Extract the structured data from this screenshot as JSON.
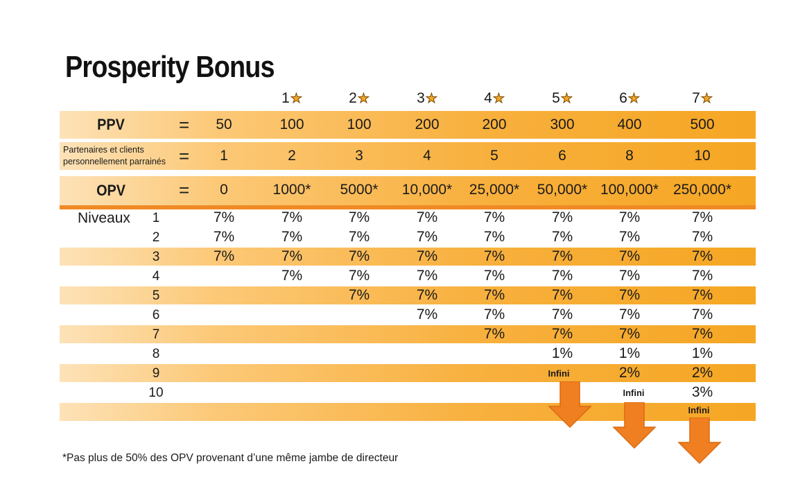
{
  "title": "Prosperity Bonus",
  "stars": [
    "1",
    "2",
    "3",
    "4",
    "5",
    "6",
    "7"
  ],
  "rows": {
    "ppv": {
      "label": "PPV",
      "eq": "=",
      "values": [
        "50",
        "100",
        "100",
        "200",
        "200",
        "300",
        "400",
        "500"
      ]
    },
    "partners": {
      "label_line1": "Partenaires et clients",
      "label_line2": "personnellement parrainés",
      "eq": "=",
      "values": [
        "1",
        "2",
        "3",
        "4",
        "5",
        "6",
        "8",
        "10"
      ]
    },
    "opv": {
      "label": "OPV",
      "eq": "=",
      "values": [
        "0",
        "1000*",
        "5000*",
        "10,000*",
        "25,000*",
        "50,000*",
        "100,000*",
        "250,000*"
      ]
    }
  },
  "levels_label": "Niveaux",
  "levels": [
    {
      "n": "1",
      "values": [
        "7%",
        "7%",
        "7%",
        "7%",
        "7%",
        "7%",
        "7%",
        "7%"
      ]
    },
    {
      "n": "2",
      "values": [
        "7%",
        "7%",
        "7%",
        "7%",
        "7%",
        "7%",
        "7%",
        "7%"
      ]
    },
    {
      "n": "3",
      "values": [
        "7%",
        "7%",
        "7%",
        "7%",
        "7%",
        "7%",
        "7%",
        "7%"
      ]
    },
    {
      "n": "4",
      "values": [
        "",
        "7%",
        "7%",
        "7%",
        "7%",
        "7%",
        "7%",
        "7%"
      ]
    },
    {
      "n": "5",
      "values": [
        "",
        "",
        "7%",
        "7%",
        "7%",
        "7%",
        "7%",
        "7%"
      ]
    },
    {
      "n": "6",
      "values": [
        "",
        "",
        "",
        "7%",
        "7%",
        "7%",
        "7%",
        "7%"
      ]
    },
    {
      "n": "7",
      "values": [
        "",
        "",
        "",
        "",
        "7%",
        "7%",
        "7%",
        "7%"
      ]
    },
    {
      "n": "8",
      "values": [
        "",
        "",
        "",
        "",
        "",
        "1%",
        "1%",
        "1%"
      ]
    },
    {
      "n": "9",
      "values": [
        "",
        "",
        "",
        "",
        "",
        "",
        "2%",
        "2%"
      ]
    },
    {
      "n": "10",
      "values": [
        "",
        "",
        "",
        "",
        "",
        "",
        "",
        "3%"
      ]
    }
  ],
  "infini_label": "Infini",
  "footnote": "*Pas plus de 50% des OPV provenant d’une même jambe de directeur",
  "colors": {
    "arrow": "#f07f22",
    "band_end": "#f5a623",
    "band_start": "#fde2b8",
    "divider": "#f08a24"
  }
}
